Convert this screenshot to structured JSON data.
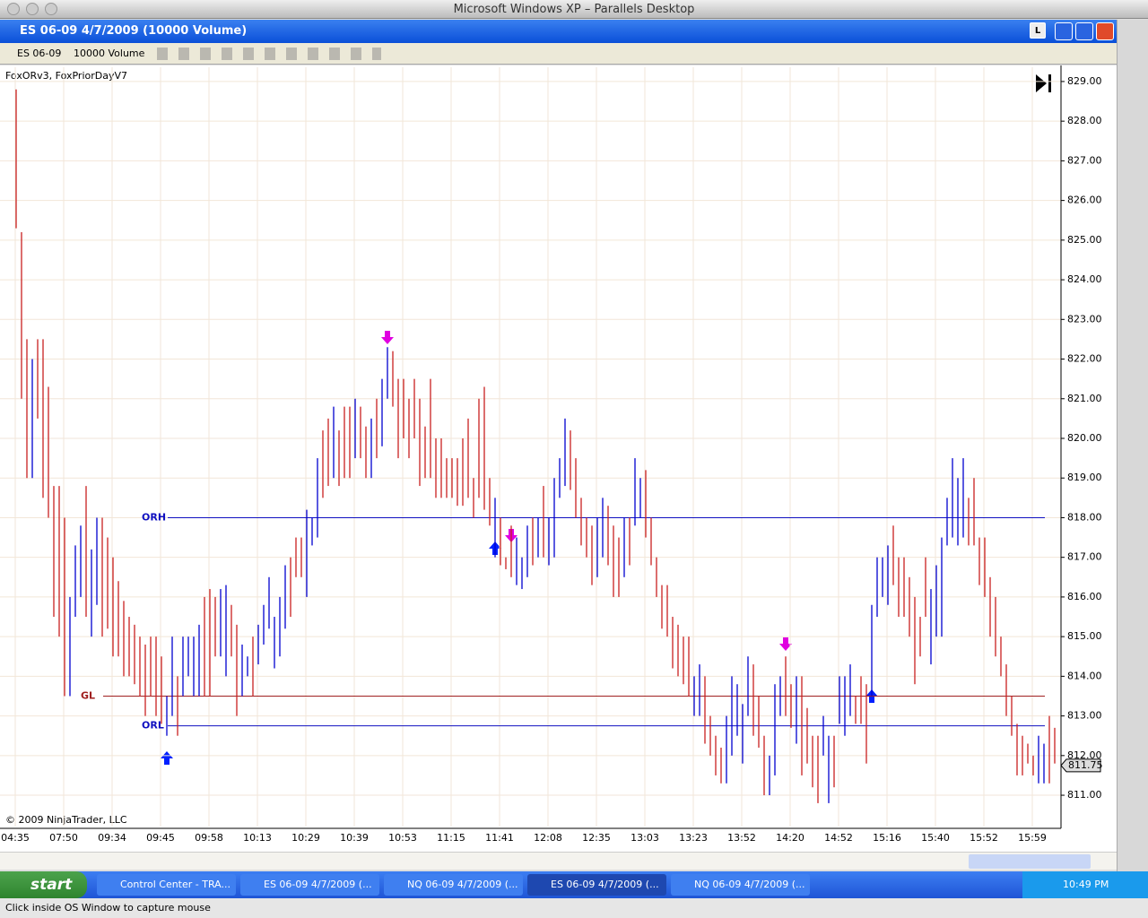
{
  "mac_title": "Microsoft Windows XP – Parallels Desktop",
  "window": {
    "title": "ES 06-09  4/7/2009 (10000 Volume)",
    "instrument": "ES 06-09",
    "interval": "10000 Volume",
    "button_l": "L"
  },
  "chart_data": {
    "type": "range-bar",
    "indicators": "FoxORv3, FoxPriorDayV7",
    "copyright": "© 2009 NinjaTrader, LLC",
    "up_color": "#0000d0",
    "down_color": "#c82020",
    "categories": [
      "04:35",
      "07:50",
      "09:34",
      "09:45",
      "09:58",
      "10:13",
      "10:29",
      "10:39",
      "10:53",
      "11:15",
      "11:41",
      "12:08",
      "12:35",
      "13:03",
      "13:23",
      "13:52",
      "14:20",
      "14:52",
      "15:16",
      "15:40",
      "15:52",
      "15:59"
    ],
    "ylim": [
      810.21,
      829.36
    ],
    "yticks": [
      {
        "value": 811,
        "label": "811.00"
      },
      {
        "value": 812,
        "label": "812.00"
      },
      {
        "value": 813,
        "label": "813.00"
      },
      {
        "value": 814,
        "label": "814.00"
      },
      {
        "value": 815,
        "label": "815.00"
      },
      {
        "value": 816,
        "label": "816.00"
      },
      {
        "value": 817,
        "label": "817.00"
      },
      {
        "value": 818,
        "label": "818.00"
      },
      {
        "value": 819,
        "label": "819.00"
      },
      {
        "value": 820,
        "label": "820.00"
      },
      {
        "value": 821,
        "label": "821.00"
      },
      {
        "value": 822,
        "label": "822.00"
      },
      {
        "value": 823,
        "label": "823.00"
      },
      {
        "value": 824,
        "label": "824.00"
      },
      {
        "value": 825,
        "label": "825.00"
      },
      {
        "value": 826,
        "label": "826.00"
      },
      {
        "value": 827,
        "label": "827.00"
      },
      {
        "value": 828,
        "label": "828.00"
      },
      {
        "value": 829,
        "label": "829.00"
      }
    ],
    "levels": [
      {
        "name": "ORH",
        "value": 818,
        "color": "#1010c0"
      },
      {
        "name": "GL",
        "value": 813.5,
        "color": "#a02020"
      },
      {
        "name": "ORL",
        "value": 812.75,
        "color": "#1010c0"
      }
    ],
    "last_price": 811.75,
    "high": [
      828.8,
      825.2,
      822.5,
      822,
      822.5,
      822.5,
      821.3,
      818.8,
      818.8,
      818,
      816,
      817.3,
      817.8,
      818.8,
      817.2,
      818,
      818,
      817.5,
      817,
      816.4,
      815.9,
      815.5,
      815.3,
      815,
      814.8,
      815,
      815,
      814.5,
      813.5,
      815,
      814,
      815,
      815,
      815,
      815.3,
      816,
      816.2,
      816,
      816.2,
      816.3,
      815.8,
      815.3,
      814.8,
      814.5,
      815,
      815.3,
      815.8,
      816.5,
      815.5,
      816,
      816.8,
      817,
      817.5,
      817.5,
      818.2,
      818,
      819.5,
      820.2,
      820.5,
      820.8,
      820.2,
      820.8,
      820.8,
      821,
      820.8,
      820.3,
      820.5,
      821,
      821.5,
      822.3,
      822.2,
      821.5,
      821.5,
      821,
      821.5,
      821,
      820.3,
      821.5,
      820,
      820,
      819.5,
      819.5,
      819.5,
      820,
      820.5,
      819,
      821,
      821.3,
      819,
      818.5,
      818,
      817,
      817.8,
      817.5,
      817,
      817.8,
      818,
      818,
      818.8,
      818,
      819,
      819.5,
      820.5,
      820.2,
      819.5,
      818.5,
      818,
      817.8,
      818,
      818.5,
      818.3,
      817.8,
      817.5,
      818,
      818,
      819.5,
      819,
      819.2,
      818,
      817,
      816.3,
      816.3,
      815.5,
      815.3,
      815,
      815,
      814,
      814.3,
      814,
      813,
      812.5,
      812.2,
      813,
      814,
      813.8,
      813.3,
      814.5,
      814.3,
      813.5,
      812.5,
      812,
      813.8,
      814,
      814.5,
      813.8,
      814,
      814,
      813.2,
      812.5,
      812.5,
      813,
      812.5,
      812.5,
      814,
      814,
      814.3,
      813.5,
      814,
      813.8,
      815.8,
      817,
      817,
      817.3,
      817.8,
      817,
      817,
      816.5,
      816,
      815.5,
      817,
      816.2,
      816.8,
      817.5,
      818.5,
      819.5,
      819,
      819.5,
      818.5,
      819,
      817.5,
      817.5,
      816.5,
      816,
      815,
      814.3,
      813.5,
      812.8,
      812.5,
      812.3,
      812,
      812.5,
      812.3,
      813,
      812.7
    ],
    "low": [
      825.3,
      821,
      819,
      819,
      820.5,
      818.5,
      818,
      815.5,
      815,
      813.5,
      813.5,
      815.5,
      816,
      815.5,
      815,
      815.8,
      815,
      815.2,
      814.5,
      814.5,
      814,
      814,
      813.8,
      813.5,
      813,
      813.5,
      813,
      812.8,
      812.5,
      813,
      812.5,
      813.5,
      814,
      813.5,
      813.5,
      813.5,
      813.5,
      814.5,
      814.5,
      814,
      814.5,
      813,
      813.5,
      814,
      813.5,
      814.3,
      814.8,
      815.2,
      814.2,
      814.5,
      815.2,
      815.5,
      816.5,
      816.5,
      816,
      817.3,
      817.5,
      818.5,
      818.8,
      819,
      818.8,
      819,
      819,
      819.5,
      819.5,
      819,
      819,
      819.5,
      819.8,
      821,
      820.8,
      819.5,
      820,
      819.5,
      820,
      818.8,
      819,
      819,
      818.5,
      818.5,
      818.5,
      818.5,
      818.3,
      818.3,
      818.5,
      818,
      818.5,
      818.2,
      817.8,
      817,
      816.8,
      816.7,
      816.5,
      816.3,
      816.2,
      816.5,
      816.8,
      817,
      817,
      816.8,
      817,
      818.5,
      818.8,
      818.7,
      818,
      817.3,
      817,
      816.3,
      816.5,
      817,
      816.8,
      816,
      816,
      816.5,
      816.8,
      817.8,
      818,
      817.5,
      816.8,
      816,
      815.2,
      815,
      814.2,
      814,
      813.8,
      813.5,
      813,
      813,
      812.3,
      812,
      811.5,
      811.3,
      811.3,
      812,
      812.5,
      811.8,
      813,
      812.5,
      812.2,
      811,
      811,
      811.5,
      813,
      813,
      812.7,
      812.3,
      811.5,
      811.8,
      811.2,
      810.8,
      812,
      810.8,
      811.2,
      812.8,
      812.5,
      813,
      812.8,
      812.8,
      811.8,
      813.5,
      815.5,
      816,
      815.8,
      816.3,
      815.5,
      815.5,
      815,
      813.8,
      814.5,
      815.5,
      814.3,
      815,
      815,
      817.3,
      817.5,
      817.3,
      817.5,
      817.3,
      817.3,
      816.3,
      816,
      815,
      814.5,
      814,
      813,
      812.5,
      811.5,
      811.5,
      811.8,
      811.5,
      811.3,
      811.3,
      811.3,
      811.8
    ],
    "rising": [
      false,
      false,
      false,
      true,
      false,
      false,
      false,
      false,
      false,
      false,
      true,
      true,
      true,
      false,
      true,
      true,
      false,
      false,
      false,
      false,
      false,
      false,
      false,
      false,
      false,
      false,
      false,
      false,
      true,
      true,
      false,
      true,
      true,
      true,
      true,
      false,
      false,
      false,
      true,
      true,
      false,
      false,
      true,
      true,
      false,
      true,
      true,
      true,
      true,
      true,
      true,
      false,
      false,
      false,
      true,
      true,
      true,
      false,
      false,
      true,
      false,
      false,
      false,
      true,
      false,
      false,
      true,
      false,
      true,
      true,
      false,
      false,
      false,
      false,
      false,
      false,
      false,
      false,
      false,
      false,
      false,
      false,
      false,
      false,
      false,
      false,
      false,
      false,
      false,
      true,
      false,
      false,
      false,
      true,
      true,
      true,
      false,
      true,
      false,
      true,
      true,
      true,
      true,
      false,
      false,
      false,
      false,
      false,
      true,
      true,
      false,
      false,
      false,
      true,
      false,
      true,
      true,
      false,
      false,
      false,
      false,
      false,
      false,
      false,
      false,
      false,
      true,
      true,
      false,
      false,
      false,
      false,
      true,
      true,
      true,
      true,
      true,
      false,
      false,
      false,
      true,
      true,
      true,
      false,
      false,
      true,
      false,
      false,
      false,
      false,
      true,
      true,
      false,
      true,
      true,
      true,
      false,
      false,
      false,
      true,
      true,
      true,
      true,
      false,
      false,
      false,
      false,
      false,
      false,
      false,
      true,
      true,
      true,
      true,
      true,
      true,
      true,
      false,
      false,
      false,
      false,
      false,
      false,
      false,
      false,
      false,
      false,
      false,
      false,
      false,
      true,
      true,
      false
    ]
  },
  "taskbar": {
    "start": "start",
    "items": [
      "Control Center - TRA...",
      "ES 06-09  4/7/2009 (...",
      "NQ 06-09  4/7/2009 (...",
      "ES 06-09  4/7/2009 (...",
      "NQ 06-09  4/7/2009 (..."
    ],
    "clock": "10:49 PM"
  },
  "status": "Click inside OS Window to capture mouse"
}
